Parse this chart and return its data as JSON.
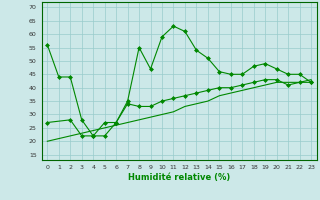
{
  "xlabel": "Humidité relative (%)",
  "background_color": "#cce8e8",
  "grid_color": "#99cccc",
  "line_color": "#008800",
  "xlim": [
    -0.5,
    23.5
  ],
  "ylim": [
    13,
    72
  ],
  "yticks": [
    15,
    20,
    25,
    30,
    35,
    40,
    45,
    50,
    55,
    60,
    65,
    70
  ],
  "xticks": [
    0,
    1,
    2,
    3,
    4,
    5,
    6,
    7,
    8,
    9,
    10,
    11,
    12,
    13,
    14,
    15,
    16,
    17,
    18,
    19,
    20,
    21,
    22,
    23
  ],
  "line1_x": [
    0,
    1,
    2,
    3,
    4,
    5,
    6,
    7,
    8,
    9,
    10,
    11,
    12,
    13,
    14,
    15,
    16,
    17,
    18,
    19,
    20,
    21,
    22,
    23
  ],
  "line1_y": [
    56,
    44,
    44,
    28,
    22,
    22,
    27,
    35,
    55,
    47,
    59,
    63,
    61,
    54,
    51,
    46,
    45,
    45,
    48,
    49,
    47,
    45,
    45,
    42
  ],
  "line2_x": [
    0,
    2,
    3,
    4,
    5,
    6,
    7,
    8,
    9,
    10,
    11,
    12,
    13,
    14,
    15,
    16,
    17,
    18,
    19,
    20,
    21,
    22,
    23
  ],
  "line2_y": [
    27,
    28,
    22,
    22,
    27,
    27,
    34,
    33,
    33,
    35,
    36,
    37,
    38,
    39,
    40,
    40,
    41,
    42,
    43,
    43,
    41,
    42,
    42
  ],
  "line3_x": [
    0,
    1,
    2,
    3,
    4,
    5,
    6,
    7,
    8,
    9,
    10,
    11,
    12,
    13,
    14,
    15,
    16,
    17,
    18,
    19,
    20,
    21,
    22,
    23
  ],
  "line3_y": [
    20,
    21,
    22,
    23,
    24,
    25,
    26,
    27,
    28,
    29,
    30,
    31,
    33,
    34,
    35,
    37,
    38,
    39,
    40,
    41,
    42,
    42,
    42,
    43
  ]
}
